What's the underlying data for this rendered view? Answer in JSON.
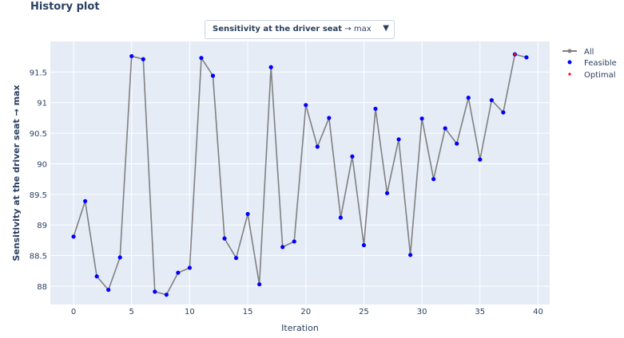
{
  "page": {
    "title": "History plot"
  },
  "selector": {
    "label_bold": "Sensitivity at the driver seat",
    "label_rest": " → max",
    "arrow": "▼"
  },
  "legend": {
    "all": "All",
    "feasible": "Feasible",
    "optimal": "Optimal"
  },
  "colors": {
    "plot_bg": "#e5ecf6",
    "line": "#808080",
    "feasible": "#0000ff",
    "optimal": "#ff0000",
    "text": "#2a3f5f"
  },
  "chart_data": {
    "type": "line",
    "xlabel": "Iteration",
    "ylabel": "Sensitivity at the driver seat → max",
    "xlim": [
      -2,
      41
    ],
    "ylim": [
      87.7,
      92.0
    ],
    "xticks": [
      0,
      5,
      10,
      15,
      20,
      25,
      30,
      35,
      40
    ],
    "yticks": [
      88,
      88.5,
      89,
      89.5,
      90,
      90.5,
      91,
      91.5
    ],
    "ytick_labels": [
      "88",
      "88.5",
      "89",
      "89.5",
      "90",
      "90.5",
      "91",
      "91.5"
    ],
    "grid": true,
    "legend_position": "top-right",
    "x": [
      0,
      1,
      2,
      3,
      4,
      5,
      6,
      7,
      8,
      9,
      10,
      11,
      12,
      13,
      14,
      15,
      16,
      17,
      18,
      19,
      20,
      21,
      22,
      23,
      24,
      25,
      26,
      27,
      28,
      29,
      30,
      31,
      32,
      33,
      34,
      35,
      36,
      37,
      38,
      39
    ],
    "series": [
      {
        "name": "All",
        "values": [
          88.81,
          89.39,
          88.16,
          87.94,
          88.47,
          91.76,
          91.71,
          87.91,
          87.86,
          88.22,
          88.3,
          91.73,
          91.44,
          88.78,
          88.46,
          89.18,
          88.03,
          91.58,
          88.64,
          88.73,
          90.96,
          90.28,
          90.75,
          89.12,
          90.12,
          88.67,
          90.9,
          89.52,
          90.4,
          88.51,
          90.74,
          89.75,
          90.58,
          90.33,
          91.08,
          90.07,
          91.04,
          90.84,
          91.79,
          91.74
        ]
      }
    ],
    "optimal": {
      "x": 38,
      "y": 91.79
    }
  }
}
